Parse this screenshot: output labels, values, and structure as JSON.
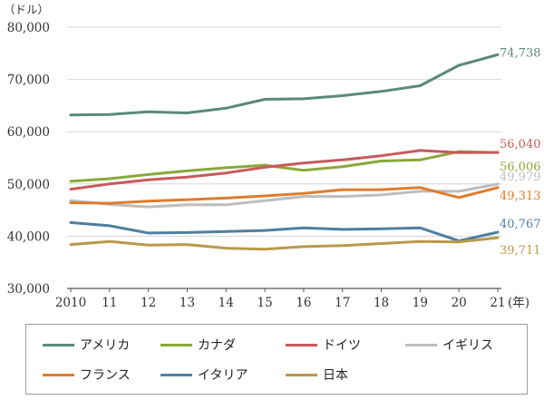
{
  "chart_data": {
    "type": "line",
    "unit_label": "（ドル）",
    "x_unit_label": "(年)",
    "categories": [
      "2010",
      "11",
      "12",
      "13",
      "14",
      "15",
      "16",
      "17",
      "18",
      "19",
      "20",
      "21"
    ],
    "ylim": [
      30000,
      80000
    ],
    "yticks": [
      "30,000",
      "40,000",
      "50,000",
      "60,000",
      "70,000",
      "80,000"
    ],
    "ytick_values": [
      30000,
      40000,
      50000,
      60000,
      70000,
      80000
    ],
    "grid": "horizontal",
    "legend_position": "bottom",
    "series": [
      {
        "name": "アメリカ",
        "color": "#5a8a78",
        "end_label": "74,738",
        "values": [
          63200,
          63300,
          63800,
          63600,
          64500,
          66200,
          66300,
          66900,
          67700,
          68800,
          72700,
          74738
        ]
      },
      {
        "name": "カナダ",
        "color": "#8aa83a",
        "end_label": "56,006",
        "values": [
          50500,
          51000,
          51800,
          52500,
          53100,
          53600,
          52600,
          53300,
          54400,
          54600,
          56200,
          56006
        ]
      },
      {
        "name": "ドイツ",
        "color": "#c85a5a",
        "end_label": "56,040",
        "values": [
          49000,
          50000,
          50800,
          51300,
          52100,
          53200,
          54000,
          54600,
          55400,
          56400,
          56000,
          56040
        ]
      },
      {
        "name": "イギリス",
        "color": "#bdbdbd",
        "end_label": "49,979",
        "values": [
          46800,
          46100,
          45600,
          46000,
          46000,
          46800,
          47600,
          47600,
          47900,
          48600,
          48600,
          49979
        ]
      },
      {
        "name": "フランス",
        "color": "#e07c2e",
        "end_label": "49,313",
        "values": [
          46400,
          46300,
          46700,
          47000,
          47300,
          47700,
          48200,
          48900,
          48900,
          49300,
          47400,
          49313
        ]
      },
      {
        "name": "イタリア",
        "color": "#4f7fa0",
        "end_label": "40,767",
        "values": [
          42600,
          42000,
          40600,
          40700,
          40900,
          41100,
          41600,
          41300,
          41400,
          41600,
          39100,
          40767
        ]
      },
      {
        "name": "日本",
        "color": "#b89a4a",
        "end_label": "39,711",
        "values": [
          38400,
          39000,
          38300,
          38400,
          37700,
          37500,
          38000,
          38200,
          38600,
          39000,
          38900,
          39711
        ]
      }
    ]
  }
}
